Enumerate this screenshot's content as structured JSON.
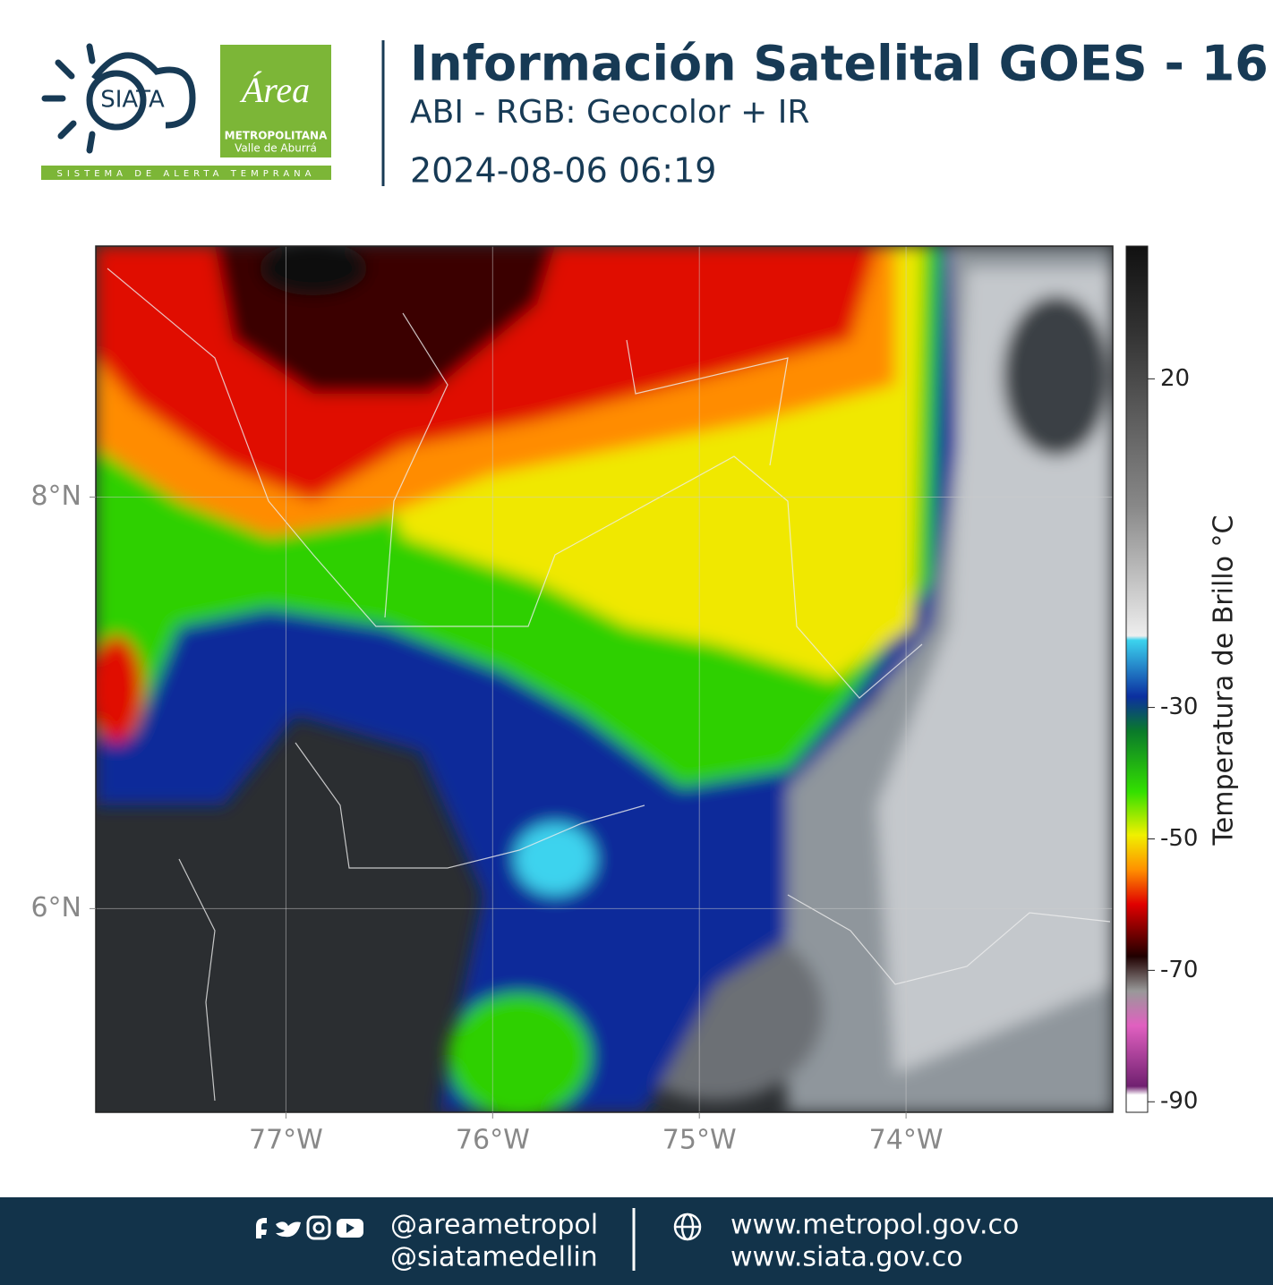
{
  "header": {
    "logo": {
      "name": "SIATA",
      "tagline": "SISTEMA DE ALERTA TEMPRANA",
      "partner": "Área",
      "partner_line1": "METROPOLITANA",
      "partner_line2": "Valle de Aburrá"
    },
    "title": "Información Satelital GOES - 16",
    "subtitle": "ABI - RGB: Geocolor + IR",
    "datetime": "2024-08-06 06:19"
  },
  "map": {
    "xlim": [
      -77.92,
      -73.0
    ],
    "ylim": [
      5.01,
      9.22
    ],
    "xticks": [
      {
        "value": -77,
        "label": "77°W"
      },
      {
        "value": -76,
        "label": "76°W"
      },
      {
        "value": -75,
        "label": "75°W"
      },
      {
        "value": -74,
        "label": "74°W"
      }
    ],
    "yticks": [
      {
        "value": 6,
        "label": "6°N"
      },
      {
        "value": 8,
        "label": "8°N"
      }
    ],
    "grid": true
  },
  "colorbar": {
    "label": "Temperatura de Brillo °C",
    "lim": [
      -91.6,
      40.2
    ],
    "ticks": [
      20,
      -30,
      -50,
      -70,
      -90
    ]
  },
  "footer": {
    "social": [
      "@areametropol",
      "@siatamedellin"
    ],
    "web": [
      "www.metropol.gov.co",
      "www.siata.gov.co"
    ]
  }
}
